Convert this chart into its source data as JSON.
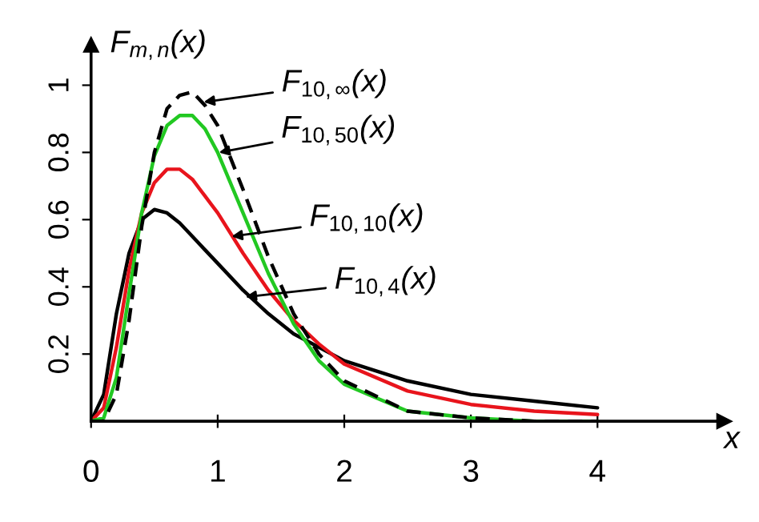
{
  "chart_data": {
    "type": "line",
    "ylabel": "F$_{m,n}$(x)",
    "xlabel": "x",
    "x": [
      0,
      0.1,
      0.2,
      0.3,
      0.4,
      0.5,
      0.6,
      0.7,
      0.8,
      0.9,
      1.0,
      1.2,
      1.4,
      1.6,
      1.8,
      2.0,
      2.5,
      3.0,
      3.5,
      4.0
    ],
    "series": [
      {
        "color": "#000000",
        "line_style": "solid",
        "values": [
          0,
          0.08,
          0.32,
          0.5,
          0.6,
          0.63,
          0.62,
          0.59,
          0.55,
          0.51,
          0.47,
          0.39,
          0.32,
          0.26,
          0.22,
          0.18,
          0.12,
          0.08,
          0.06,
          0.04
        ]
      },
      {
        "color": "#e8141c",
        "line_style": "solid",
        "values": [
          0,
          0.04,
          0.22,
          0.45,
          0.62,
          0.71,
          0.75,
          0.75,
          0.72,
          0.67,
          0.62,
          0.5,
          0.39,
          0.3,
          0.23,
          0.17,
          0.09,
          0.05,
          0.03,
          0.02
        ]
      },
      {
        "color": "#22c822",
        "line_style": "solid",
        "values": [
          0,
          0.01,
          0.13,
          0.38,
          0.62,
          0.79,
          0.88,
          0.91,
          0.91,
          0.87,
          0.8,
          0.62,
          0.44,
          0.29,
          0.18,
          0.11,
          0.03,
          0.01,
          0,
          0
        ]
      },
      {
        "color": "#000000",
        "line_style": "dashed",
        "values": [
          0,
          0,
          0.08,
          0.3,
          0.58,
          0.8,
          0.93,
          0.97,
          0.98,
          0.94,
          0.88,
          0.69,
          0.49,
          0.32,
          0.2,
          0.12,
          0.03,
          0.01,
          0,
          0
        ]
      }
    ],
    "annotations": [
      {
        "text": "F$_{10,∞}$(x)",
        "x": 0.89,
        "y": 0.95
      },
      {
        "text": "F$_{10,50}$(x)",
        "x": 1.01,
        "y": 0.8
      },
      {
        "text": "F$_{10,10}$(x)",
        "x": 1.11,
        "y": 0.55
      },
      {
        "text": "F$_{10,4}$(x)",
        "x": 1.22,
        "y": 0.37
      }
    ],
    "xlim": [
      0,
      5
    ],
    "ylim": [
      0,
      1.12
    ],
    "xticks": [
      0,
      1,
      2,
      3,
      4
    ],
    "yticks": [
      0.2,
      0.4,
      0.6,
      0.8,
      1
    ],
    "grid": false,
    "legend": false,
    "marker": "none"
  }
}
